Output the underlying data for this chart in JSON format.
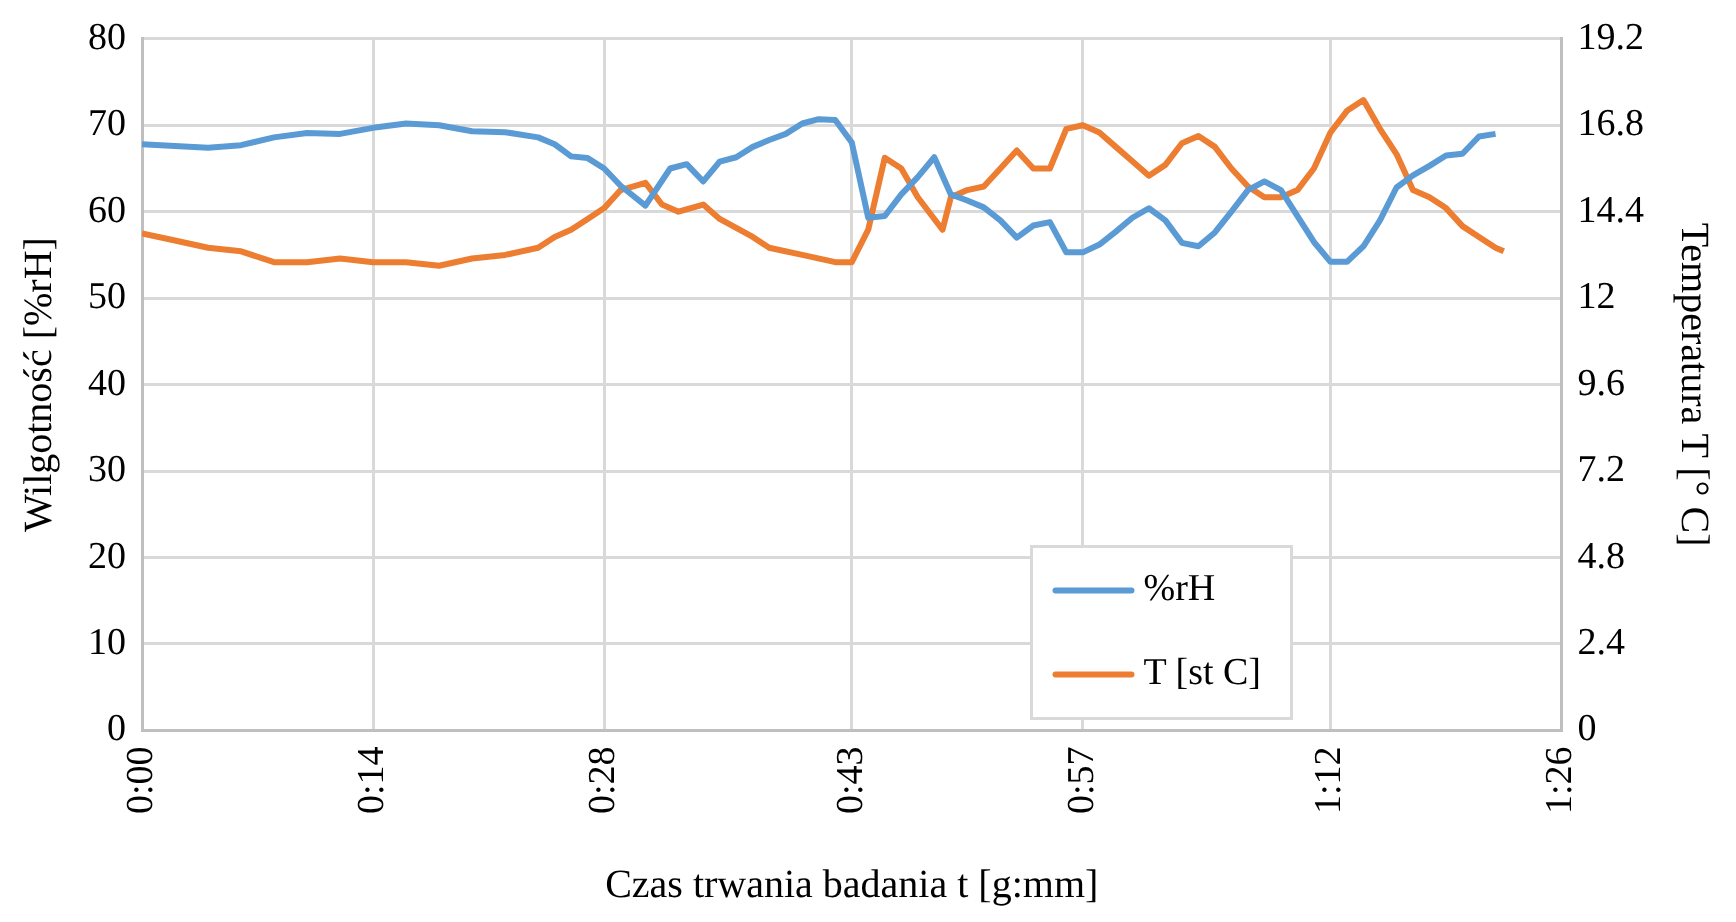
{
  "chart_data": {
    "type": "line",
    "xlabel": "Czas trwania badania t [g:mm]",
    "ylabel": "Wilgotność [%rH]",
    "y2label": "Temperatura T [° C]",
    "xlim": [
      0,
      1.4333
    ],
    "xticks": [
      {
        "value": 0,
        "label": "0:00"
      },
      {
        "value": 0.2333,
        "label": "0:14"
      },
      {
        "value": 0.4667,
        "label": "0:28"
      },
      {
        "value": 0.7167,
        "label": "0:43"
      },
      {
        "value": 0.95,
        "label": "0:57"
      },
      {
        "value": 1.2,
        "label": "1:12"
      },
      {
        "value": 1.4333,
        "label": "1:26"
      }
    ],
    "ylim": [
      0,
      80
    ],
    "yticks": [
      0,
      10,
      20,
      30,
      40,
      50,
      60,
      70,
      80
    ],
    "y2lim": [
      0,
      19.2
    ],
    "y2ticks": [
      0,
      2.4,
      4.8,
      7.2,
      9.6,
      12,
      14.4,
      16.8,
      19.2
    ],
    "grid": true,
    "legend": "bottom right",
    "marker": "none",
    "line_style": "solid",
    "series": [
      {
        "name": "%rH",
        "color": "#5b9bd5",
        "x": [
          0,
          0.0333,
          0.0667,
          0.1,
          0.1333,
          0.1667,
          0.2,
          0.2333,
          0.2667,
          0.3,
          0.3333,
          0.3667,
          0.4,
          0.4167,
          0.4333,
          0.45,
          0.4667,
          0.4833,
          0.5083,
          0.5333,
          0.55,
          0.5667,
          0.5833,
          0.6,
          0.6167,
          0.6333,
          0.65,
          0.6667,
          0.6833,
          0.7,
          0.7167,
          0.7333,
          0.75,
          0.7667,
          0.7833,
          0.8,
          0.8167,
          0.8333,
          0.85,
          0.8667,
          0.8833,
          0.9,
          0.9167,
          0.9333,
          0.95,
          0.9667,
          0.9833,
          1.0,
          1.0167,
          1.0333,
          1.05,
          1.0667,
          1.0833,
          1.1,
          1.1167,
          1.1333,
          1.15,
          1.1667,
          1.1833,
          1.2,
          1.2167,
          1.2333,
          1.25,
          1.2667,
          1.2833,
          1.3,
          1.3167,
          1.3333,
          1.35,
          1.3667
        ],
        "values": [
          67.8,
          67.6,
          67.4,
          67.7,
          68.6,
          69.1,
          69.0,
          69.7,
          70.2,
          70.0,
          69.3,
          69.2,
          68.6,
          67.8,
          66.4,
          66.2,
          65,
          63,
          60.7,
          65.0,
          65.5,
          63.5,
          65.8,
          66.3,
          67.5,
          68.3,
          69,
          70.2,
          70.7,
          70.6,
          68,
          59.3,
          59.5,
          62,
          64,
          66.3,
          62,
          61.3,
          60.5,
          59,
          57,
          58.4,
          58.8,
          55.3,
          55.3,
          56.2,
          57.7,
          59.3,
          60.4,
          59,
          56.4,
          56,
          57.6,
          60,
          62.5,
          63.5,
          62.5,
          59.5,
          56.5,
          54.2,
          54.2,
          56,
          59,
          62.8,
          64.2,
          65.3,
          66.5,
          66.7,
          68.7,
          69.0
        ]
      },
      {
        "name": "T [st C]",
        "color": "#ed7d31",
        "axis": "y2",
        "x": [
          0,
          0.0333,
          0.0667,
          0.1,
          0.1333,
          0.1667,
          0.2,
          0.2333,
          0.2667,
          0.3,
          0.3333,
          0.3667,
          0.4,
          0.4167,
          0.4333,
          0.45,
          0.4667,
          0.4833,
          0.5083,
          0.525,
          0.5417,
          0.5667,
          0.5833,
          0.6167,
          0.6333,
          0.6667,
          0.7,
          0.7167,
          0.7333,
          0.75,
          0.7667,
          0.7833,
          0.8083,
          0.8167,
          0.8333,
          0.85,
          0.8667,
          0.8833,
          0.9,
          0.9167,
          0.9333,
          0.95,
          0.9667,
          0.9833,
          1.0,
          1.0167,
          1.0333,
          1.05,
          1.0667,
          1.0833,
          1.1,
          1.1167,
          1.1333,
          1.15,
          1.1667,
          1.1833,
          1.2,
          1.2167,
          1.2333,
          1.25,
          1.2667,
          1.2833,
          1.3,
          1.3167,
          1.3333,
          1.35,
          1.3667,
          1.375
        ],
        "values": [
          13.8,
          13.6,
          13.4,
          13.3,
          13.0,
          13.0,
          13.1,
          13.0,
          13.0,
          12.9,
          13.1,
          13.2,
          13.4,
          13.7,
          13.9,
          14.2,
          14.5,
          15.0,
          15.2,
          14.6,
          14.4,
          14.6,
          14.2,
          13.7,
          13.4,
          13.2,
          13.0,
          13.0,
          13.9,
          15.9,
          15.6,
          14.8,
          13.9,
          14.8,
          15.0,
          15.1,
          15.6,
          16.1,
          15.6,
          15.6,
          16.7,
          16.8,
          16.6,
          16.2,
          15.8,
          15.4,
          15.7,
          16.3,
          16.5,
          16.2,
          15.6,
          15.1,
          14.8,
          14.8,
          15.0,
          15.6,
          16.6,
          17.2,
          17.5,
          16.7,
          16.0,
          15.0,
          14.8,
          14.5,
          14.0,
          13.7,
          13.4,
          13.3
        ]
      }
    ]
  }
}
